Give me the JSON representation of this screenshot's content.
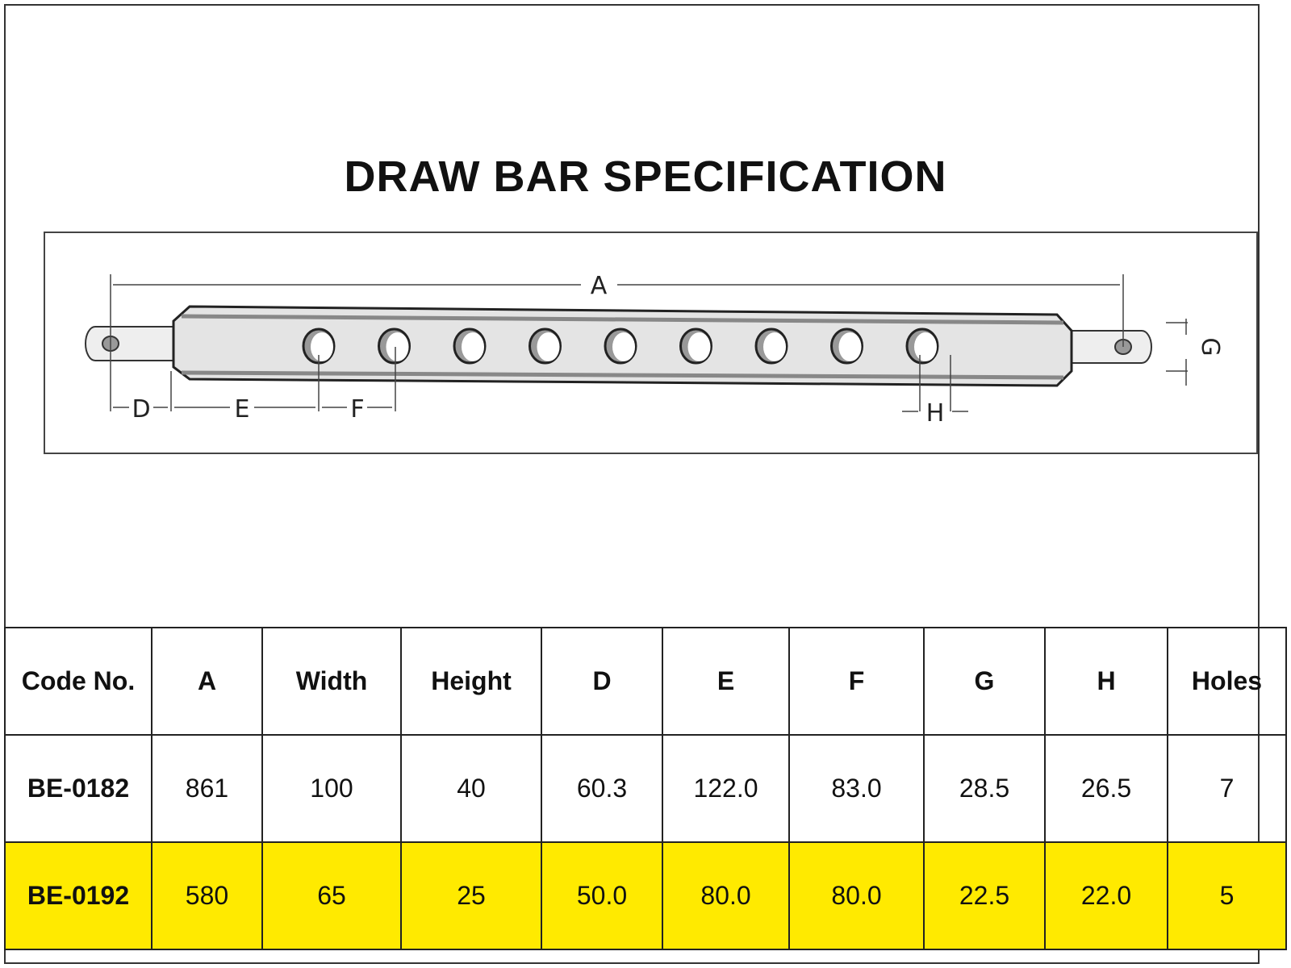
{
  "title": "DRAW BAR SPECIFICATION",
  "diagram": {
    "labels": {
      "A": "A",
      "D": "D",
      "E": "E",
      "F": "F",
      "G": "G",
      "H": "H"
    },
    "hole_count_drawn": 9
  },
  "table": {
    "headers": [
      "Code No.",
      "A",
      "Width",
      "Height",
      "D",
      "E",
      "F",
      "G",
      "H",
      "Holes"
    ],
    "rows": [
      {
        "highlighted": false,
        "cells": [
          "BE-0182",
          "861",
          "100",
          "40",
          "60.3",
          "122.0",
          "83.0",
          "28.5",
          "26.5",
          "7"
        ]
      },
      {
        "highlighted": true,
        "cells": [
          "BE-0192",
          "580",
          "65",
          "25",
          "50.0",
          "80.0",
          "80.0",
          "22.5",
          "22.0",
          "5"
        ]
      }
    ],
    "highlight_color": "#ffea00"
  }
}
